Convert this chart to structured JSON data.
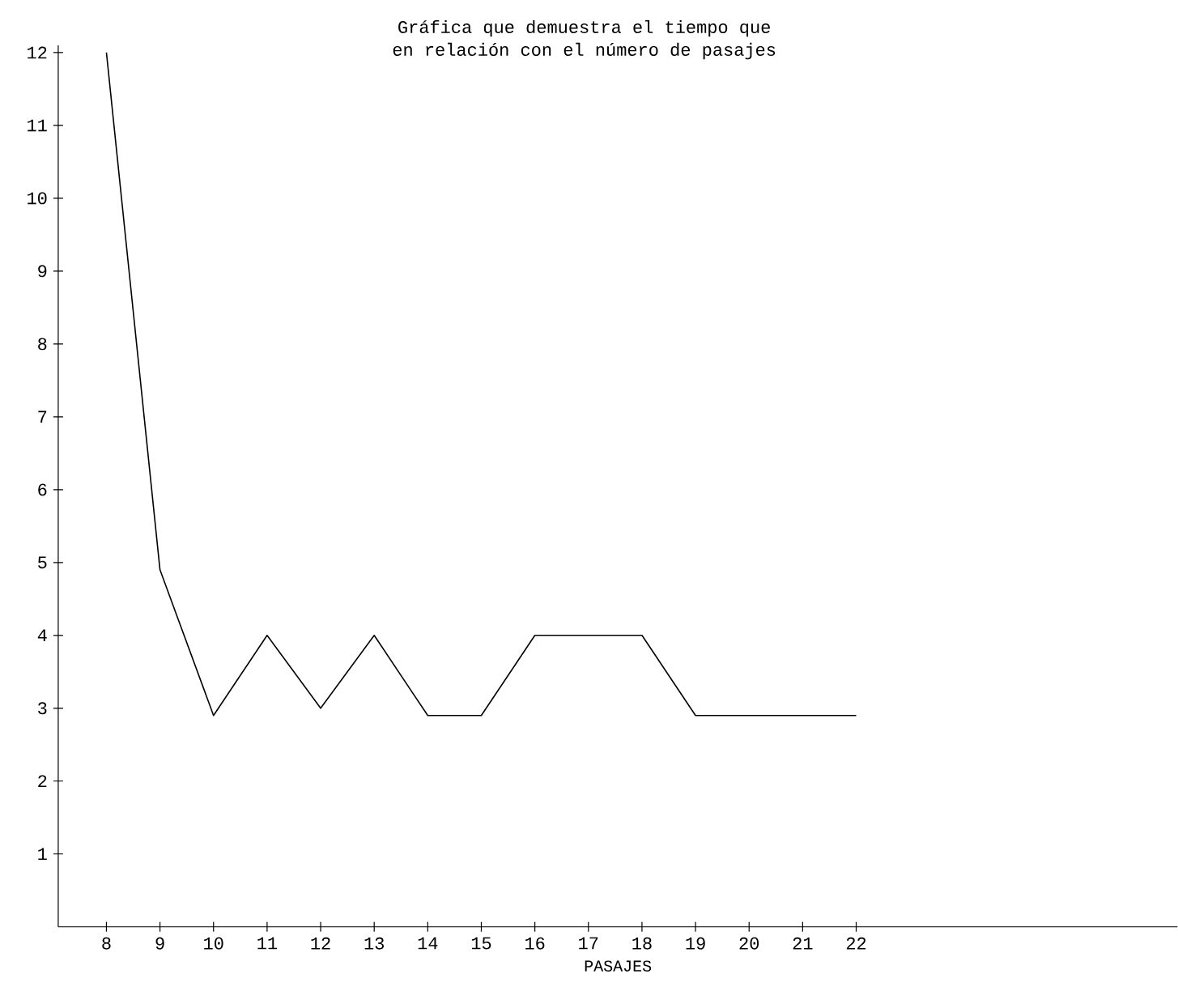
{
  "chart_data": {
    "type": "line",
    "title": "Gráfica que demuestra el tiempo que",
    "subtitle": "en relación con el número de pasajes",
    "xlabel": "PASAJES",
    "x": [
      8,
      9,
      10,
      11,
      12,
      13,
      14,
      15,
      16,
      17,
      18,
      19,
      20,
      21,
      22
    ],
    "series": [
      {
        "color": "#000000",
        "values": [
          12,
          4.9,
          2.9,
          4,
          3,
          4,
          2.9,
          2.9,
          4,
          4,
          4,
          2.9,
          2.9,
          2.9,
          2.9
        ]
      }
    ],
    "xlim": [
      7.1,
      28
    ],
    "ylim": [
      0,
      12.1
    ],
    "xticks": [
      8,
      9,
      10,
      11,
      12,
      13,
      14,
      15,
      16,
      17,
      18,
      19,
      20,
      21,
      22
    ],
    "yticks": [
      1,
      2,
      3,
      4,
      5,
      6,
      7,
      8,
      9,
      10,
      11,
      12
    ],
    "grid": false,
    "marker": "none",
    "line_style": "solid"
  }
}
